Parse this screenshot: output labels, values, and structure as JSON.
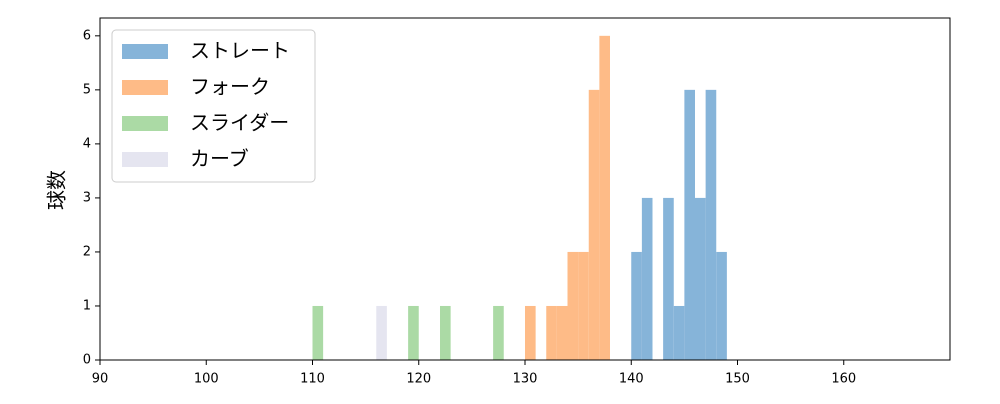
{
  "chart_data": {
    "type": "histogram",
    "ylabel": "球数",
    "xlim": [
      90,
      170
    ],
    "ylim": [
      0,
      6.33
    ],
    "xticks": [
      90,
      100,
      110,
      120,
      130,
      140,
      150,
      160
    ],
    "yticks": [
      0,
      1,
      2,
      3,
      4,
      5,
      6
    ],
    "legend": "upper left",
    "series": [
      {
        "name": "ストレート",
        "color": "#86b4d9",
        "bins": [
          140,
          141,
          142,
          143,
          144,
          145,
          146,
          147,
          148,
          149
        ],
        "counts": [
          2,
          3,
          0,
          3,
          1,
          5,
          3,
          5,
          2
        ]
      },
      {
        "name": "フォーク",
        "color": "#febb87",
        "bins": [
          130,
          131,
          132,
          133,
          134,
          135,
          136,
          137,
          138
        ],
        "counts": [
          1,
          0,
          1,
          1,
          2,
          2,
          5,
          6
        ]
      },
      {
        "name": "スライダー",
        "color": "#abdaa5",
        "bins": [
          110,
          111,
          112,
          113,
          114,
          115,
          116,
          117,
          118,
          119,
          120,
          121,
          122,
          123,
          124,
          125,
          126,
          127,
          128
        ],
        "counts": [
          1,
          0,
          0,
          0,
          0,
          0,
          0,
          0,
          0,
          1,
          0,
          0,
          1,
          0,
          0,
          0,
          0,
          1
        ]
      },
      {
        "name": "カーブ",
        "color": "#e5e5f0",
        "bins": [
          116,
          117
        ],
        "counts": [
          1
        ]
      }
    ]
  }
}
